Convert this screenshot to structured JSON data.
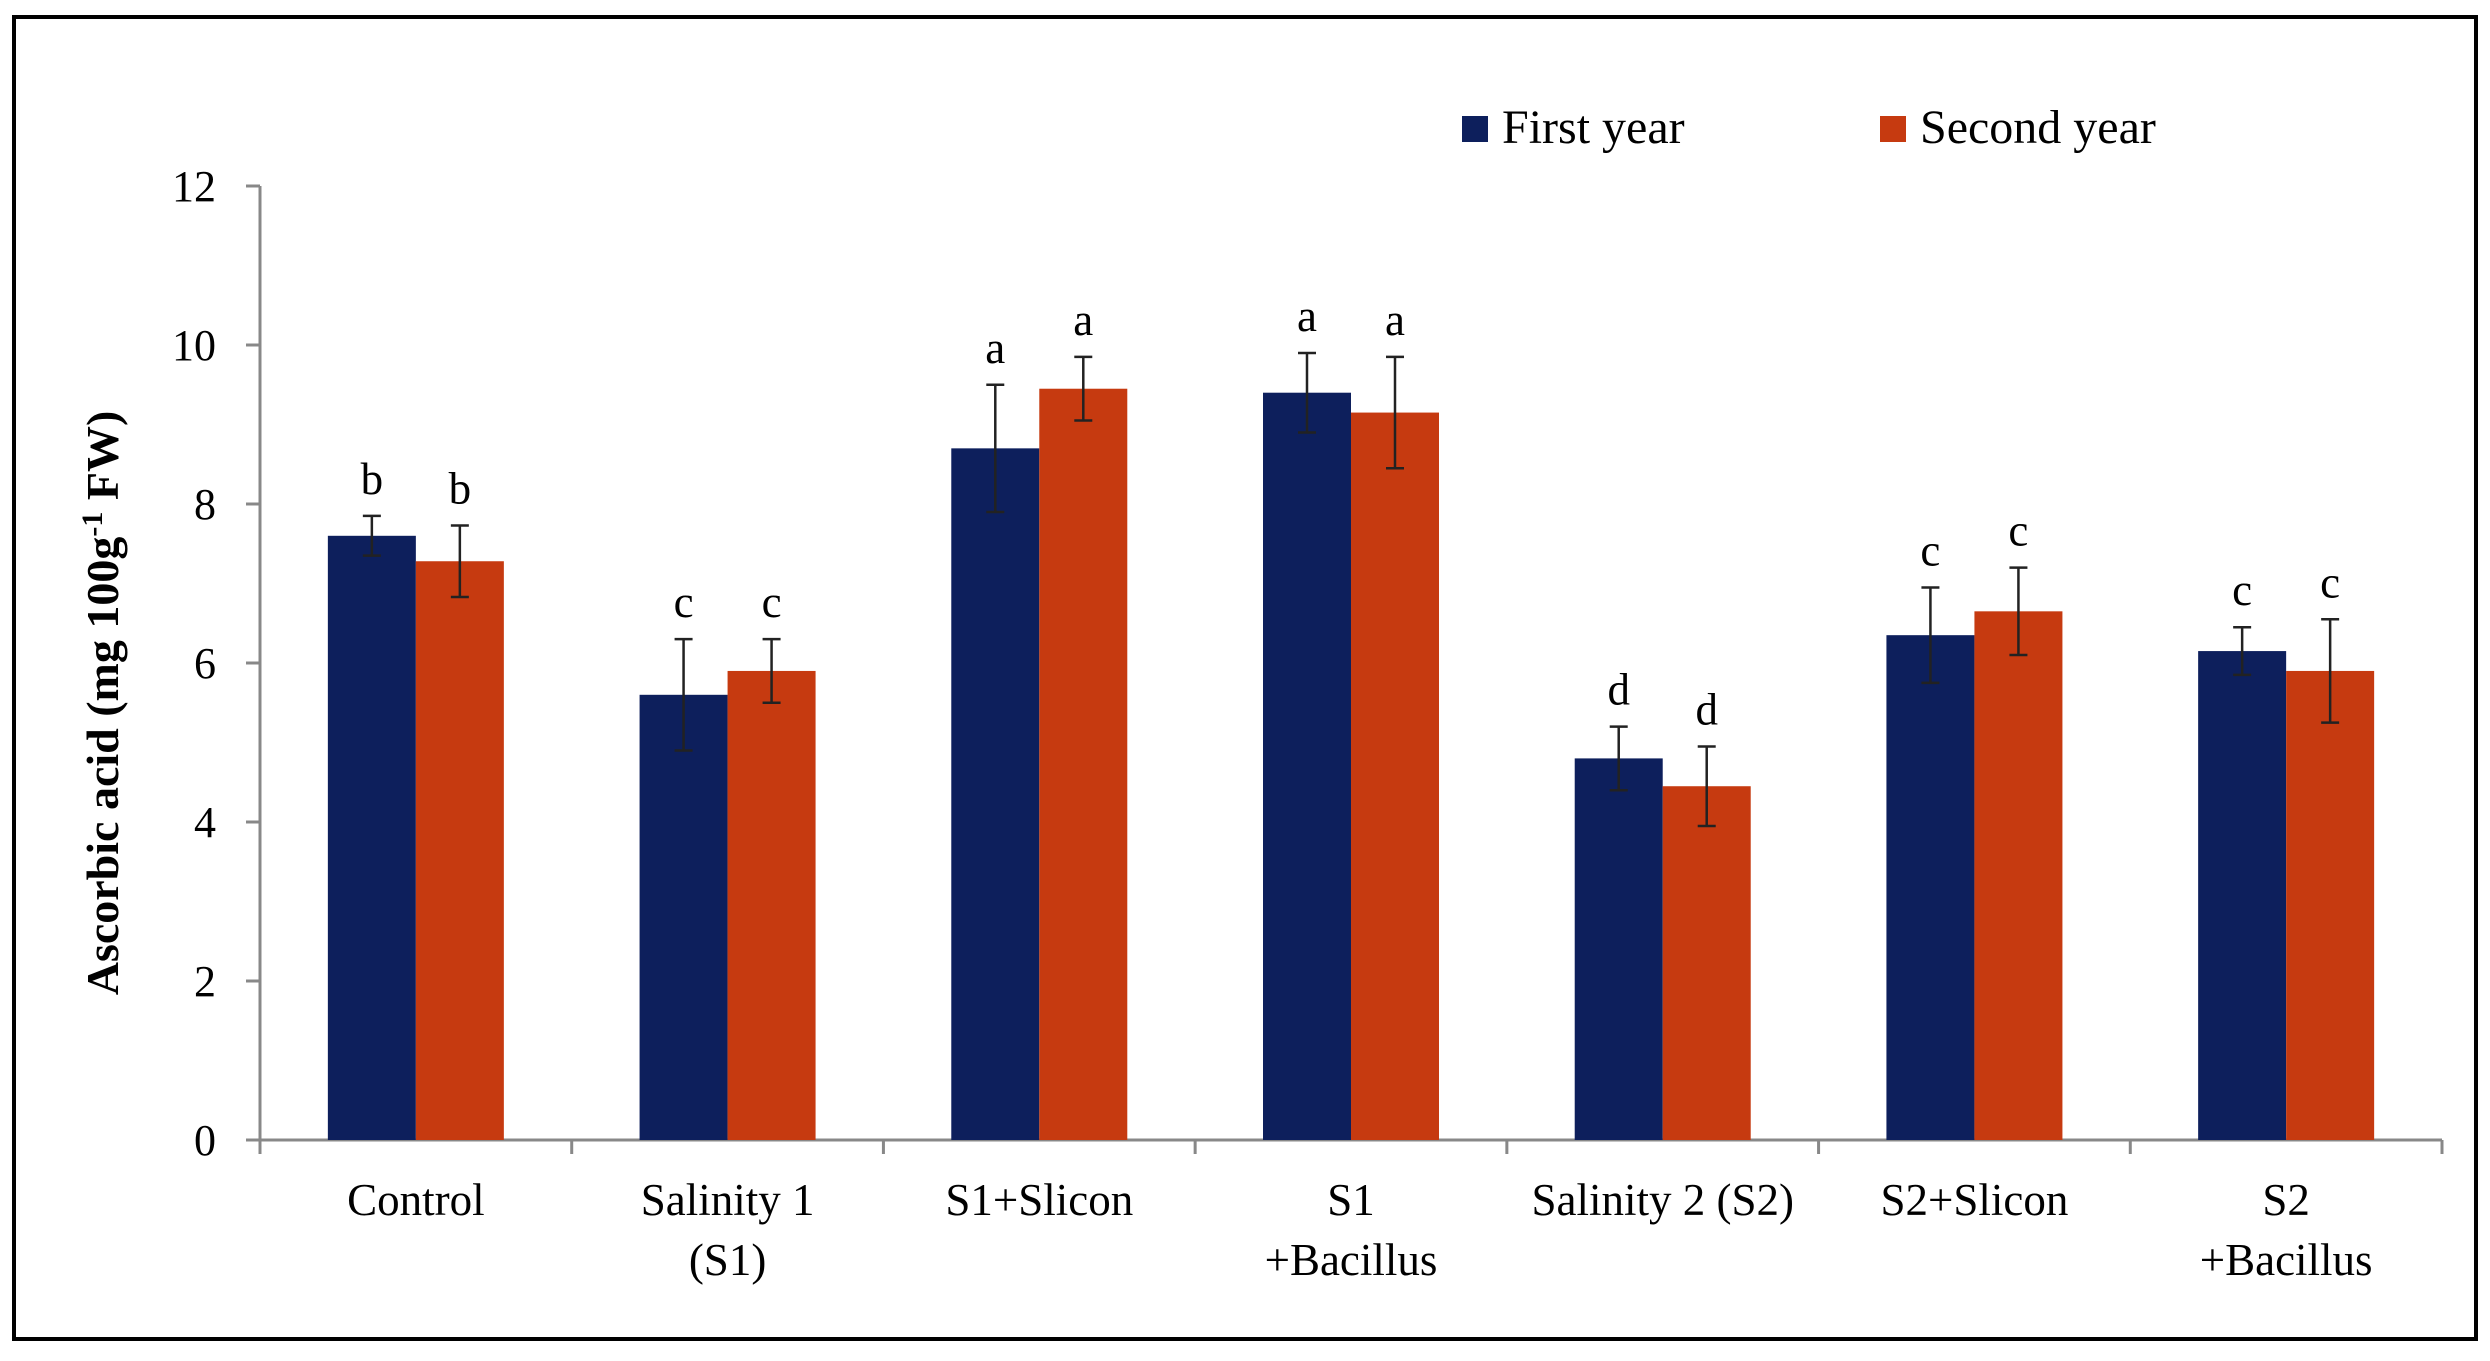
{
  "chart_data": {
    "type": "bar",
    "title": "",
    "xlabel": "",
    "ylabel": "Ascorbic acid (mg 100g-1 FW)",
    "ylabel_parts": {
      "before": "Ascorbic acid (mg 100g",
      "sup": "-1",
      "after": " FW)"
    },
    "ylim": [
      0,
      12
    ],
    "yticks": [
      "0",
      "2",
      "4",
      "6",
      "8",
      "10",
      "12"
    ],
    "grid": false,
    "legend_position": "top-right",
    "categories": [
      [
        "Control"
      ],
      [
        "Salinity  1",
        "(S1)"
      ],
      [
        "S1+Slicon"
      ],
      [
        "S1",
        "+Bacillus"
      ],
      [
        "Salinity 2 (S2)"
      ],
      [
        "S2+Slicon"
      ],
      [
        "S2",
        "+Bacillus"
      ]
    ],
    "series": [
      {
        "name": "First year",
        "color": "#0D1F5C",
        "values": [
          7.6,
          5.6,
          8.7,
          9.4,
          4.8,
          6.35,
          6.15
        ],
        "errors": [
          0.25,
          0.7,
          0.8,
          0.5,
          0.4,
          0.6,
          0.3
        ],
        "letters": [
          "b",
          "c",
          "a",
          "a",
          "d",
          "c",
          "c"
        ]
      },
      {
        "name": "Second year",
        "color": "#C63A10",
        "values": [
          7.28,
          5.9,
          9.45,
          9.15,
          4.45,
          6.65,
          5.9
        ],
        "errors": [
          0.45,
          0.4,
          0.4,
          0.7,
          0.5,
          0.55,
          0.65
        ],
        "letters": [
          "b",
          "c",
          "a",
          "a",
          "d",
          "c",
          "c"
        ]
      }
    ]
  }
}
